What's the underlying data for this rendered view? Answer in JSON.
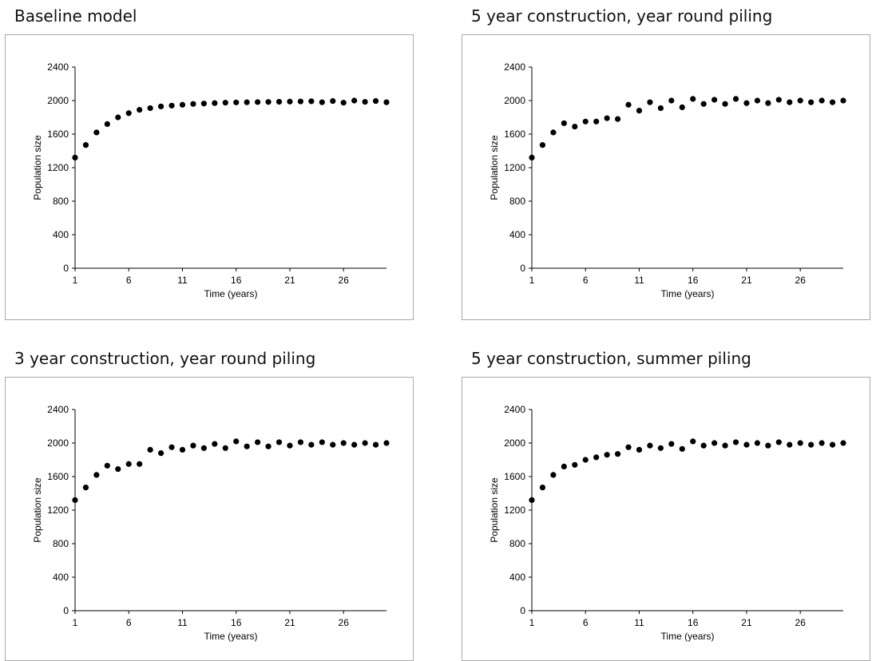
{
  "chart_data": [
    {
      "type": "scatter",
      "title": "Baseline model",
      "xlabel": "Time (years)",
      "ylabel": "Population size",
      "xlim": [
        1,
        30
      ],
      "ylim": [
        0,
        2400
      ],
      "xticks": [
        1,
        6,
        11,
        16,
        21,
        26
      ],
      "yticks": [
        0,
        400,
        800,
        1200,
        1600,
        2000,
        2400
      ],
      "grid": false,
      "series": [
        {
          "x": [
            1,
            2,
            3,
            4,
            5,
            6,
            7,
            8,
            9,
            10,
            11,
            12,
            13,
            14,
            15,
            16,
            17,
            18,
            19,
            20,
            21,
            22,
            23,
            24,
            25,
            26,
            27,
            28,
            29,
            30
          ],
          "y": [
            1320,
            1470,
            1620,
            1720,
            1800,
            1850,
            1890,
            1910,
            1930,
            1940,
            1950,
            1960,
            1965,
            1970,
            1975,
            1978,
            1980,
            1982,
            1984,
            1986,
            1988,
            1990,
            1992,
            1980,
            1995,
            1975,
            2000,
            1985,
            1995,
            1980
          ]
        }
      ]
    },
    {
      "type": "scatter",
      "title": "5 year construction, year round piling",
      "xlabel": "Time (years)",
      "ylabel": "Population size",
      "xlim": [
        1,
        30
      ],
      "ylim": [
        0,
        2400
      ],
      "xticks": [
        1,
        6,
        11,
        16,
        21,
        26
      ],
      "yticks": [
        0,
        400,
        800,
        1200,
        1600,
        2000,
        2400
      ],
      "grid": false,
      "series": [
        {
          "x": [
            1,
            2,
            3,
            4,
            5,
            6,
            7,
            8,
            9,
            10,
            11,
            12,
            13,
            14,
            15,
            16,
            17,
            18,
            19,
            20,
            21,
            22,
            23,
            24,
            25,
            26,
            27,
            28,
            29,
            30
          ],
          "y": [
            1320,
            1470,
            1620,
            1730,
            1690,
            1750,
            1750,
            1790,
            1780,
            1950,
            1880,
            1980,
            1910,
            2000,
            1920,
            2020,
            1960,
            2010,
            1960,
            2020,
            1970,
            2000,
            1970,
            2010,
            1980,
            2000,
            1980,
            2000,
            1980,
            2000
          ]
        }
      ]
    },
    {
      "type": "scatter",
      "title": "3 year construction, year round piling",
      "xlabel": "Time (years)",
      "ylabel": "Population size",
      "xlim": [
        1,
        30
      ],
      "ylim": [
        0,
        2400
      ],
      "xticks": [
        1,
        6,
        11,
        16,
        21,
        26
      ],
      "yticks": [
        0,
        400,
        800,
        1200,
        1600,
        2000,
        2400
      ],
      "grid": false,
      "series": [
        {
          "x": [
            1,
            2,
            3,
            4,
            5,
            6,
            7,
            8,
            9,
            10,
            11,
            12,
            13,
            14,
            15,
            16,
            17,
            18,
            19,
            20,
            21,
            22,
            23,
            24,
            25,
            26,
            27,
            28,
            29,
            30
          ],
          "y": [
            1320,
            1470,
            1620,
            1730,
            1690,
            1750,
            1750,
            1920,
            1880,
            1950,
            1920,
            1970,
            1940,
            1990,
            1940,
            2020,
            1960,
            2010,
            1960,
            2010,
            1970,
            2010,
            1980,
            2010,
            1980,
            2000,
            1980,
            2000,
            1980,
            2000
          ]
        }
      ]
    },
    {
      "type": "scatter",
      "title": "5 year construction, summer piling",
      "xlabel": "Time (years)",
      "ylabel": "Population size",
      "xlim": [
        1,
        30
      ],
      "ylim": [
        0,
        2400
      ],
      "xticks": [
        1,
        6,
        11,
        16,
        21,
        26
      ],
      "yticks": [
        0,
        400,
        800,
        1200,
        1600,
        2000,
        2400
      ],
      "grid": false,
      "series": [
        {
          "x": [
            1,
            2,
            3,
            4,
            5,
            6,
            7,
            8,
            9,
            10,
            11,
            12,
            13,
            14,
            15,
            16,
            17,
            18,
            19,
            20,
            21,
            22,
            23,
            24,
            25,
            26,
            27,
            28,
            29,
            30
          ],
          "y": [
            1320,
            1470,
            1620,
            1720,
            1740,
            1800,
            1830,
            1860,
            1870,
            1950,
            1920,
            1970,
            1940,
            1990,
            1930,
            2020,
            1970,
            2000,
            1970,
            2010,
            1980,
            2000,
            1970,
            2010,
            1980,
            2000,
            1980,
            2000,
            1980,
            2000
          ]
        }
      ]
    }
  ]
}
